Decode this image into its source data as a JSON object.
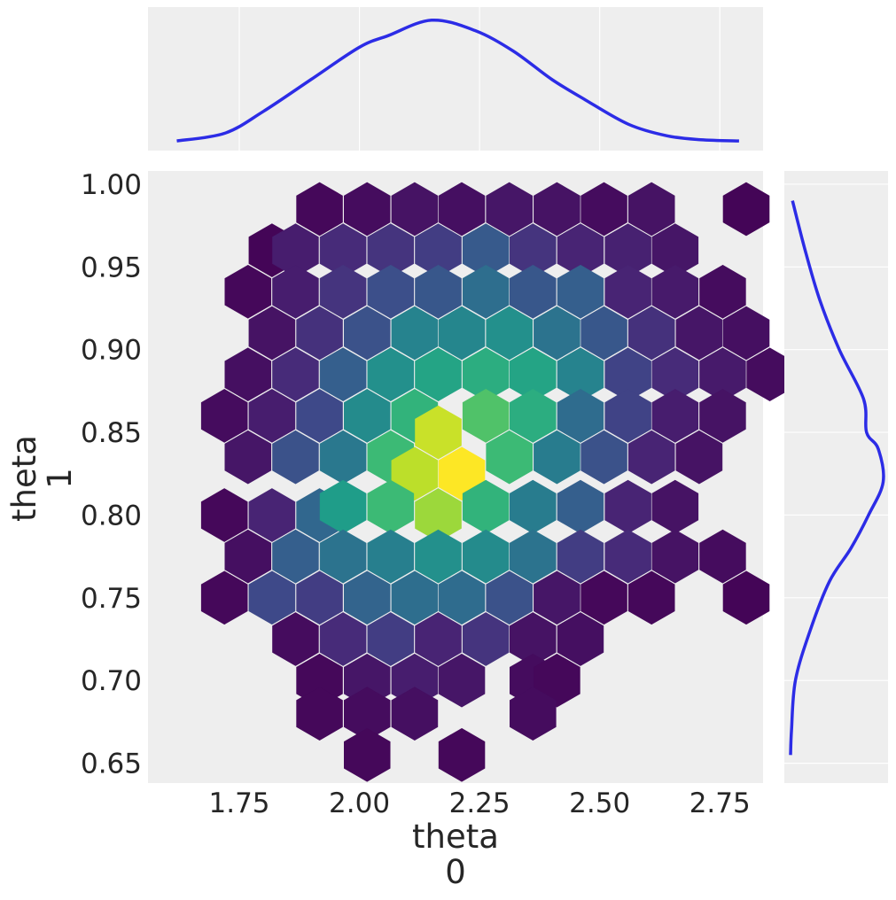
{
  "chart_data": {
    "type": "hexbin",
    "xlabel": "theta\n0",
    "ylabel": "theta\n1",
    "xlim": [
      1.56,
      2.84
    ],
    "ylim": [
      0.638,
      1.008
    ],
    "xticks": [
      1.75,
      2.0,
      2.25,
      2.5,
      2.75
    ],
    "xtick_labels": [
      "1.75",
      "2.00",
      "2.25",
      "2.50",
      "2.75"
    ],
    "yticks": [
      0.65,
      0.7,
      0.75,
      0.8,
      0.85,
      0.9,
      0.95,
      1.0
    ],
    "ytick_labels": [
      "0.65",
      "0.70",
      "0.75",
      "0.80",
      "0.85",
      "0.90",
      "0.95",
      "1.00"
    ],
    "hex_radius_deg": 30,
    "cells": [
      {
        "x": 1.917,
        "y": 0.985,
        "v": 0.02
      },
      {
        "x": 2.016,
        "y": 0.985,
        "v": 0.03
      },
      {
        "x": 2.115,
        "y": 0.985,
        "v": 0.05
      },
      {
        "x": 2.213,
        "y": 0.985,
        "v": 0.04
      },
      {
        "x": 2.312,
        "y": 0.985,
        "v": 0.06
      },
      {
        "x": 2.411,
        "y": 0.985,
        "v": 0.05
      },
      {
        "x": 2.509,
        "y": 0.985,
        "v": 0.03
      },
      {
        "x": 2.608,
        "y": 0.985,
        "v": 0.05
      },
      {
        "x": 2.805,
        "y": 0.985,
        "v": 0.01
      },
      {
        "x": 1.818,
        "y": 0.96,
        "v": 0.01
      },
      {
        "x": 1.867,
        "y": 0.96,
        "v": 0.08
      },
      {
        "x": 1.966,
        "y": 0.96,
        "v": 0.12
      },
      {
        "x": 2.065,
        "y": 0.96,
        "v": 0.15
      },
      {
        "x": 2.164,
        "y": 0.96,
        "v": 0.18
      },
      {
        "x": 2.263,
        "y": 0.96,
        "v": 0.28
      },
      {
        "x": 2.361,
        "y": 0.96,
        "v": 0.15
      },
      {
        "x": 2.46,
        "y": 0.96,
        "v": 0.1
      },
      {
        "x": 2.559,
        "y": 0.96,
        "v": 0.09
      },
      {
        "x": 2.657,
        "y": 0.96,
        "v": 0.06
      },
      {
        "x": 1.768,
        "y": 0.935,
        "v": 0.02
      },
      {
        "x": 1.867,
        "y": 0.935,
        "v": 0.08
      },
      {
        "x": 1.966,
        "y": 0.935,
        "v": 0.15
      },
      {
        "x": 2.065,
        "y": 0.935,
        "v": 0.24
      },
      {
        "x": 2.164,
        "y": 0.935,
        "v": 0.27
      },
      {
        "x": 2.263,
        "y": 0.935,
        "v": 0.36
      },
      {
        "x": 2.361,
        "y": 0.935,
        "v": 0.27
      },
      {
        "x": 2.46,
        "y": 0.935,
        "v": 0.3
      },
      {
        "x": 2.559,
        "y": 0.935,
        "v": 0.1
      },
      {
        "x": 2.657,
        "y": 0.935,
        "v": 0.07
      },
      {
        "x": 2.756,
        "y": 0.935,
        "v": 0.03
      },
      {
        "x": 1.818,
        "y": 0.91,
        "v": 0.05
      },
      {
        "x": 1.917,
        "y": 0.91,
        "v": 0.14
      },
      {
        "x": 2.016,
        "y": 0.91,
        "v": 0.25
      },
      {
        "x": 2.115,
        "y": 0.91,
        "v": 0.45
      },
      {
        "x": 2.213,
        "y": 0.91,
        "v": 0.46
      },
      {
        "x": 2.312,
        "y": 0.91,
        "v": 0.5
      },
      {
        "x": 2.411,
        "y": 0.91,
        "v": 0.38
      },
      {
        "x": 2.509,
        "y": 0.91,
        "v": 0.27
      },
      {
        "x": 2.608,
        "y": 0.91,
        "v": 0.14
      },
      {
        "x": 2.707,
        "y": 0.91,
        "v": 0.06
      },
      {
        "x": 2.805,
        "y": 0.91,
        "v": 0.04
      },
      {
        "x": 1.768,
        "y": 0.885,
        "v": 0.04
      },
      {
        "x": 1.867,
        "y": 0.885,
        "v": 0.12
      },
      {
        "x": 1.966,
        "y": 0.885,
        "v": 0.3
      },
      {
        "x": 2.065,
        "y": 0.885,
        "v": 0.5
      },
      {
        "x": 2.164,
        "y": 0.885,
        "v": 0.58
      },
      {
        "x": 2.263,
        "y": 0.885,
        "v": 0.62
      },
      {
        "x": 2.361,
        "y": 0.885,
        "v": 0.58
      },
      {
        "x": 2.46,
        "y": 0.885,
        "v": 0.45
      },
      {
        "x": 2.559,
        "y": 0.885,
        "v": 0.2
      },
      {
        "x": 2.657,
        "y": 0.885,
        "v": 0.12
      },
      {
        "x": 2.756,
        "y": 0.885,
        "v": 0.07
      },
      {
        "x": 2.854,
        "y": 0.885,
        "v": 0.03
      },
      {
        "x": 1.719,
        "y": 0.86,
        "v": 0.03
      },
      {
        "x": 1.818,
        "y": 0.86,
        "v": 0.08
      },
      {
        "x": 1.917,
        "y": 0.86,
        "v": 0.22
      },
      {
        "x": 2.016,
        "y": 0.86,
        "v": 0.48
      },
      {
        "x": 2.115,
        "y": 0.86,
        "v": 0.65
      },
      {
        "x": 2.164,
        "y": 0.85,
        "v": 0.92
      },
      {
        "x": 2.263,
        "y": 0.86,
        "v": 0.72
      },
      {
        "x": 2.361,
        "y": 0.86,
        "v": 0.62
      },
      {
        "x": 2.46,
        "y": 0.86,
        "v": 0.35
      },
      {
        "x": 2.559,
        "y": 0.86,
        "v": 0.2
      },
      {
        "x": 2.657,
        "y": 0.86,
        "v": 0.08
      },
      {
        "x": 2.756,
        "y": 0.86,
        "v": 0.05
      },
      {
        "x": 1.768,
        "y": 0.835,
        "v": 0.06
      },
      {
        "x": 1.867,
        "y": 0.835,
        "v": 0.25
      },
      {
        "x": 1.966,
        "y": 0.835,
        "v": 0.4
      },
      {
        "x": 2.065,
        "y": 0.835,
        "v": 0.68
      },
      {
        "x": 2.115,
        "y": 0.825,
        "v": 0.9
      },
      {
        "x": 2.213,
        "y": 0.825,
        "v": 1.0
      },
      {
        "x": 2.312,
        "y": 0.835,
        "v": 0.68
      },
      {
        "x": 2.411,
        "y": 0.835,
        "v": 0.42
      },
      {
        "x": 2.509,
        "y": 0.835,
        "v": 0.25
      },
      {
        "x": 2.608,
        "y": 0.835,
        "v": 0.1
      },
      {
        "x": 2.707,
        "y": 0.835,
        "v": 0.05
      },
      {
        "x": 1.719,
        "y": 0.8,
        "v": 0.02
      },
      {
        "x": 1.818,
        "y": 0.8,
        "v": 0.1
      },
      {
        "x": 1.917,
        "y": 0.8,
        "v": 0.33
      },
      {
        "x": 1.966,
        "y": 0.805,
        "v": 0.55
      },
      {
        "x": 2.065,
        "y": 0.805,
        "v": 0.68
      },
      {
        "x": 2.164,
        "y": 0.8,
        "v": 0.85
      },
      {
        "x": 2.263,
        "y": 0.805,
        "v": 0.65
      },
      {
        "x": 2.361,
        "y": 0.805,
        "v": 0.42
      },
      {
        "x": 2.46,
        "y": 0.805,
        "v": 0.3
      },
      {
        "x": 2.559,
        "y": 0.805,
        "v": 0.1
      },
      {
        "x": 2.657,
        "y": 0.805,
        "v": 0.05
      },
      {
        "x": 1.768,
        "y": 0.775,
        "v": 0.04
      },
      {
        "x": 1.867,
        "y": 0.775,
        "v": 0.3
      },
      {
        "x": 1.966,
        "y": 0.775,
        "v": 0.38
      },
      {
        "x": 2.065,
        "y": 0.775,
        "v": 0.43
      },
      {
        "x": 2.164,
        "y": 0.775,
        "v": 0.5
      },
      {
        "x": 2.263,
        "y": 0.775,
        "v": 0.48
      },
      {
        "x": 2.361,
        "y": 0.775,
        "v": 0.38
      },
      {
        "x": 2.46,
        "y": 0.775,
        "v": 0.18
      },
      {
        "x": 2.559,
        "y": 0.775,
        "v": 0.12
      },
      {
        "x": 2.657,
        "y": 0.775,
        "v": 0.05
      },
      {
        "x": 2.756,
        "y": 0.775,
        "v": 0.03
      },
      {
        "x": 1.719,
        "y": 0.75,
        "v": 0.02
      },
      {
        "x": 1.818,
        "y": 0.75,
        "v": 0.22
      },
      {
        "x": 1.917,
        "y": 0.75,
        "v": 0.18
      },
      {
        "x": 2.016,
        "y": 0.75,
        "v": 0.32
      },
      {
        "x": 2.115,
        "y": 0.75,
        "v": 0.36
      },
      {
        "x": 2.213,
        "y": 0.75,
        "v": 0.35
      },
      {
        "x": 2.312,
        "y": 0.75,
        "v": 0.25
      },
      {
        "x": 2.411,
        "y": 0.75,
        "v": 0.06
      },
      {
        "x": 2.509,
        "y": 0.75,
        "v": 0.02
      },
      {
        "x": 2.608,
        "y": 0.75,
        "v": 0.02
      },
      {
        "x": 2.805,
        "y": 0.75,
        "v": 0.01
      },
      {
        "x": 1.867,
        "y": 0.725,
        "v": 0.03
      },
      {
        "x": 1.966,
        "y": 0.725,
        "v": 0.12
      },
      {
        "x": 2.065,
        "y": 0.725,
        "v": 0.18
      },
      {
        "x": 2.164,
        "y": 0.725,
        "v": 0.1
      },
      {
        "x": 2.263,
        "y": 0.725,
        "v": 0.15
      },
      {
        "x": 2.361,
        "y": 0.725,
        "v": 0.05
      },
      {
        "x": 2.46,
        "y": 0.725,
        "v": 0.04
      },
      {
        "x": 1.917,
        "y": 0.7,
        "v": 0.02
      },
      {
        "x": 2.016,
        "y": 0.7,
        "v": 0.06
      },
      {
        "x": 2.115,
        "y": 0.7,
        "v": 0.08
      },
      {
        "x": 2.213,
        "y": 0.7,
        "v": 0.06
      },
      {
        "x": 2.361,
        "y": 0.7,
        "v": 0.03
      },
      {
        "x": 2.411,
        "y": 0.7,
        "v": 0.02
      },
      {
        "x": 1.917,
        "y": 0.68,
        "v": 0.02
      },
      {
        "x": 2.016,
        "y": 0.68,
        "v": 0.03
      },
      {
        "x": 2.115,
        "y": 0.68,
        "v": 0.04
      },
      {
        "x": 2.361,
        "y": 0.68,
        "v": 0.03
      },
      {
        "x": 2.016,
        "y": 0.655,
        "v": 0.02
      },
      {
        "x": 2.213,
        "y": 0.655,
        "v": 0.02
      }
    ],
    "marginal_x": {
      "x": [
        1.62,
        1.72,
        1.8,
        1.9,
        2.0,
        2.06,
        2.15,
        2.24,
        2.32,
        2.4,
        2.47,
        2.56,
        2.64,
        2.71,
        2.79
      ],
      "density": [
        0.02,
        0.08,
        0.25,
        0.5,
        0.75,
        0.84,
        0.96,
        0.88,
        0.72,
        0.5,
        0.34,
        0.15,
        0.06,
        0.03,
        0.02
      ]
    },
    "marginal_y": {
      "y": [
        0.99,
        0.96,
        0.93,
        0.9,
        0.87,
        0.85,
        0.84,
        0.82,
        0.8,
        0.78,
        0.76,
        0.73,
        0.7,
        0.67,
        0.655
      ],
      "density": [
        0.02,
        0.15,
        0.3,
        0.5,
        0.75,
        0.78,
        0.9,
        0.95,
        0.8,
        0.62,
        0.4,
        0.2,
        0.05,
        0.01,
        0.0
      ]
    },
    "line_color": "#2c2ce6",
    "panel_bg": "#eeeeee",
    "grid": true,
    "colormap": "viridis"
  }
}
